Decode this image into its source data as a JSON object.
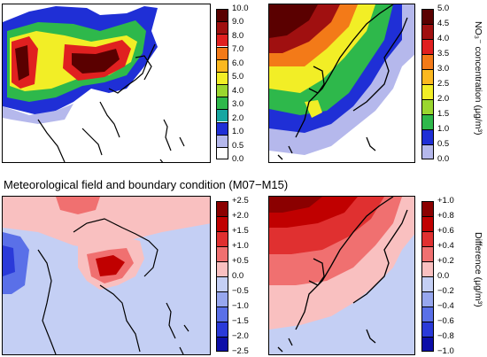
{
  "title": "Meteorological field and boundary condition (M07−M15)",
  "top_colorbar_label": "NO₃⁻ concentration (μg/m³)",
  "bottom_colorbar_label": "Difference (μg/m³)",
  "cbar_tl": {
    "ticks": [
      "10.0",
      "9.0",
      "8.0",
      "7.0",
      "6.0",
      "5.0",
      "4.0",
      "3.0",
      "2.0",
      "1.0",
      "0.5",
      "0.0"
    ],
    "colors": [
      "#5a0000",
      "#a01010",
      "#e02020",
      "#f37a18",
      "#fbb81f",
      "#f2ee26",
      "#9ad62f",
      "#2eb84b",
      "#17a6a1",
      "#1f2fd6",
      "#b5b8ec",
      "#ffffff"
    ]
  },
  "cbar_tr": {
    "ticks": [
      "5.0",
      "4.5",
      "4.0",
      "3.5",
      "3.0",
      "2.5",
      "2.0",
      "1.5",
      "1.0",
      "0.5",
      "0.0"
    ],
    "colors": [
      "#5a0000",
      "#a01010",
      "#e02020",
      "#f37a18",
      "#fbb81f",
      "#f2ee26",
      "#9ad62f",
      "#2eb84b",
      "#1f2fd6",
      "#b5b8ec"
    ]
  },
  "cbar_bl": {
    "ticks": [
      "+2.5",
      "+2.0",
      "+1.5",
      "+1.0",
      "+0.5",
      "0.0",
      "−0.5",
      "−1.0",
      "−1.5",
      "−2.0",
      "−2.5"
    ],
    "colors": [
      "#8b0000",
      "#c00000",
      "#e03030",
      "#f07070",
      "#f9c0c0",
      "#c4cff4",
      "#97a7ee",
      "#5a70e8",
      "#2a3ad9",
      "#0c0ea8"
    ]
  },
  "cbar_br": {
    "ticks": [
      "+1.0",
      "+0.8",
      "+0.6",
      "+0.4",
      "+0.2",
      "0.0",
      "−0.2",
      "−0.4",
      "−0.6",
      "−0.8",
      "−1.0"
    ],
    "colors": [
      "#8b0000",
      "#c00000",
      "#e03030",
      "#f07070",
      "#f9c0c0",
      "#c4cff4",
      "#97a7ee",
      "#5a70e8",
      "#2a3ad9",
      "#0c0ea8"
    ]
  }
}
